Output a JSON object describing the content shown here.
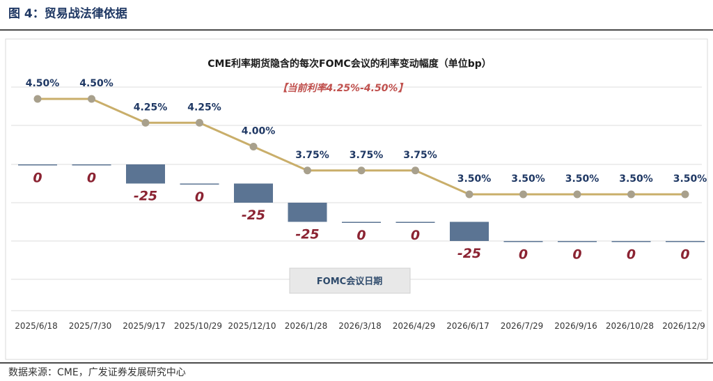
{
  "figure": {
    "title": "图 4：贸易战法律依据",
    "source": "数据来源：CME，广发证券发展研究中心"
  },
  "chart_data": {
    "type": "line",
    "title": "CME利率期货隐含的每次FOMC会议的利率变动幅度（单位bp）",
    "subtitle": "【当前利率4.25%-4.50%】",
    "xlabel": "FOMC会议日期",
    "ylabel": "",
    "categories": [
      "2025/6/18",
      "2025/7/30",
      "2025/9/17",
      "2025/10/29",
      "2025/12/10",
      "2026/1/28",
      "2026/3/18",
      "2026/4/29",
      "2026/6/17",
      "2026/7/29",
      "2026/9/16",
      "2026/10/28",
      "2026/12/9"
    ],
    "series": [
      {
        "chart_kind": "line",
        "values": [
          4.5,
          4.5,
          4.25,
          4.25,
          4.0,
          3.75,
          3.75,
          3.75,
          3.5,
          3.5,
          3.5,
          3.5,
          3.5
        ],
        "labels": [
          "4.50%",
          "4.50%",
          "4.25%",
          "4.25%",
          "4.00%",
          "3.75%",
          "3.75%",
          "3.75%",
          "3.50%",
          "3.50%",
          "3.50%",
          "3.50%",
          "3.50%"
        ],
        "color": "#c9ae6a",
        "marker_color": "#a8a08c"
      },
      {
        "chart_kind": "bar",
        "values": [
          0,
          0,
          -25,
          0,
          -25,
          -25,
          0,
          0,
          -25,
          0,
          0,
          0,
          0
        ],
        "labels": [
          "0",
          "0",
          "-25",
          "0",
          "-25",
          "-25",
          "0",
          "0",
          "-25",
          "0",
          "0",
          "0",
          "0"
        ],
        "color": "#5b7493"
      }
    ],
    "grid": true,
    "legend": "none"
  }
}
